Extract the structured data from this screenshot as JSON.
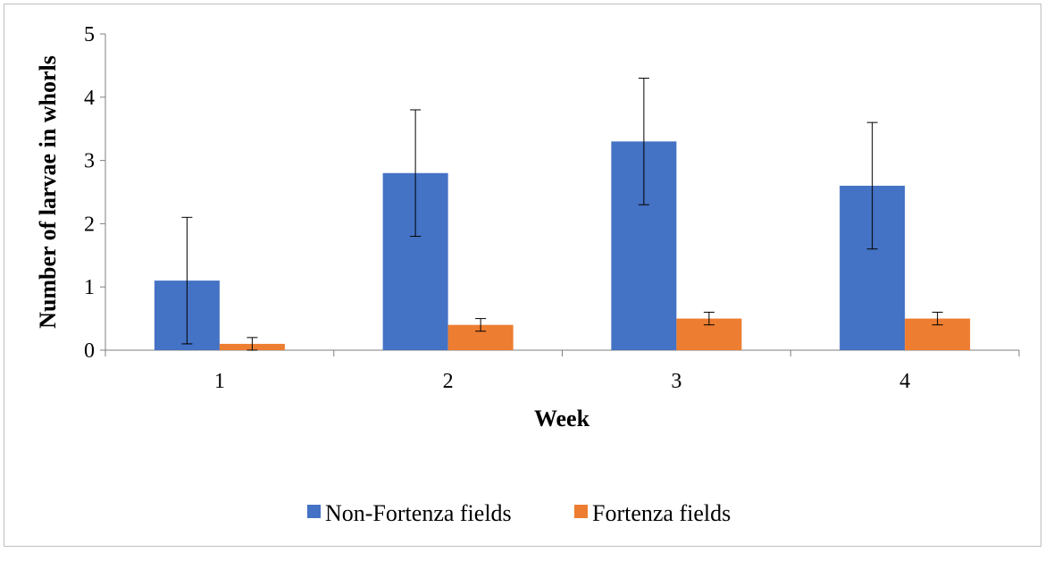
{
  "chart_data": {
    "type": "bar",
    "title": "",
    "xlabel": "Week",
    "ylabel": "Number of larvae in whorls",
    "categories": [
      "1",
      "2",
      "3",
      "4"
    ],
    "ylim": [
      0,
      5
    ],
    "yticks": [
      "0",
      "1",
      "2",
      "3",
      "4",
      "5"
    ],
    "grid": false,
    "legend_position": "bottom",
    "series": [
      {
        "name": "Non-Fortenza fields",
        "color": "#4472C4",
        "values": [
          1.1,
          2.8,
          3.3,
          2.6
        ],
        "errors": [
          1.0,
          1.0,
          1.0,
          1.0
        ]
      },
      {
        "name": "Fortenza fields",
        "color": "#ED7D31",
        "values": [
          0.1,
          0.4,
          0.5,
          0.5
        ],
        "errors": [
          0.1,
          0.1,
          0.1,
          0.1
        ]
      }
    ]
  }
}
